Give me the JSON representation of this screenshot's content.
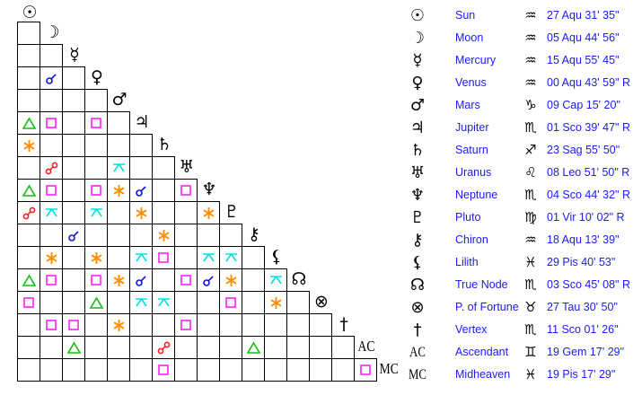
{
  "aspect_colors": {
    "conjunction": "#1010e0",
    "opposition": "#ff2020",
    "trine": "#10c010",
    "square": "#ff20ff",
    "sextile": "#ff8c00",
    "quincunx": "#00e0e0"
  },
  "bodies": [
    {
      "name": "Sun",
      "glyph": "☉",
      "icon": "sun-icon",
      "sign": "♒",
      "position": "27 Aqu 31' 35\""
    },
    {
      "name": "Moon",
      "glyph": "☽",
      "icon": "moon-icon",
      "sign": "♒",
      "position": "05 Aqu 44' 56\""
    },
    {
      "name": "Mercury",
      "glyph": "☿",
      "icon": "mercury-icon",
      "sign": "♒",
      "position": "15 Aqu 55' 45\""
    },
    {
      "name": "Venus",
      "glyph": "♀",
      "icon": "venus-icon",
      "sign": "♒",
      "position": "00 Aqu 43' 59\" R"
    },
    {
      "name": "Mars",
      "glyph": "♂",
      "icon": "mars-icon",
      "sign": "♑",
      "position": "09 Cap 15' 20\""
    },
    {
      "name": "Jupiter",
      "glyph": "♃",
      "icon": "jupiter-icon",
      "sign": "♏",
      "position": "01 Sco 39' 47\" R"
    },
    {
      "name": "Saturn",
      "glyph": "♄",
      "icon": "saturn-icon",
      "sign": "♐",
      "position": "23 Sag 55' 50\""
    },
    {
      "name": "Uranus",
      "glyph": "♅",
      "icon": "uranus-icon",
      "sign": "♌",
      "position": "08 Leo 51' 50\" R"
    },
    {
      "name": "Neptune",
      "glyph": "♆",
      "icon": "neptune-icon",
      "sign": "♏",
      "position": "04 Sco 44' 32\" R"
    },
    {
      "name": "Pluto",
      "glyph": "♇",
      "icon": "pluto-icon",
      "sign": "♍",
      "position": "01 Vir 10' 02\" R"
    },
    {
      "name": "Chiron",
      "glyph": "⚷",
      "icon": "chiron-icon",
      "sign": "♒",
      "position": "18 Aqu 13' 39\""
    },
    {
      "name": "Lilith",
      "glyph": "⚸",
      "icon": "lilith-icon",
      "sign": "♓",
      "position": "29 Pis 40' 53\""
    },
    {
      "name": "True Node",
      "glyph": "☊",
      "icon": "true-node-icon",
      "sign": "♏",
      "position": "03 Sco 45' 08\" R"
    },
    {
      "name": "P. of Fortune",
      "glyph": "⊗",
      "icon": "part-of-fortune-icon",
      "sign": "♉",
      "position": "27 Tau 30' 50\""
    },
    {
      "name": "Vertex",
      "glyph": "†",
      "icon": "vertex-icon",
      "sign": "♏",
      "position": "11 Sco 01' 26\""
    },
    {
      "name": "Ascendant",
      "glyph": "AC",
      "icon": "ascendant-label",
      "sign": "♊",
      "position": "19 Gem 17' 29\""
    },
    {
      "name": "Midheaven",
      "glyph": "MC",
      "icon": "midheaven-label",
      "sign": "♓",
      "position": "19 Pis 17' 29\""
    }
  ],
  "aspects": [
    [],
    [],
    [],
    [
      [
        1,
        "conjunction"
      ]
    ],
    [],
    [
      [
        0,
        "trine"
      ],
      [
        1,
        "square"
      ],
      [
        3,
        "square"
      ]
    ],
    [
      [
        0,
        "sextile"
      ]
    ],
    [
      [
        1,
        "opposition"
      ],
      [
        4,
        "quincunx"
      ]
    ],
    [
      [
        0,
        "trine"
      ],
      [
        1,
        "square"
      ],
      [
        3,
        "square"
      ],
      [
        4,
        "sextile"
      ],
      [
        5,
        "conjunction"
      ],
      [
        7,
        "square"
      ]
    ],
    [
      [
        0,
        "opposition"
      ],
      [
        1,
        "quincunx"
      ],
      [
        3,
        "quincunx"
      ],
      [
        5,
        "sextile"
      ],
      [
        8,
        "sextile"
      ]
    ],
    [
      [
        2,
        "conjunction"
      ],
      [
        6,
        "sextile"
      ]
    ],
    [
      [
        1,
        "sextile"
      ],
      [
        3,
        "sextile"
      ],
      [
        5,
        "quincunx"
      ],
      [
        6,
        "square"
      ],
      [
        8,
        "quincunx"
      ],
      [
        9,
        "quincunx"
      ]
    ],
    [
      [
        0,
        "trine"
      ],
      [
        1,
        "square"
      ],
      [
        3,
        "square"
      ],
      [
        4,
        "sextile"
      ],
      [
        5,
        "conjunction"
      ],
      [
        7,
        "square"
      ],
      [
        8,
        "conjunction"
      ],
      [
        9,
        "sextile"
      ],
      [
        11,
        "quincunx"
      ]
    ],
    [
      [
        0,
        "square"
      ],
      [
        3,
        "trine"
      ],
      [
        5,
        "quincunx"
      ],
      [
        6,
        "quincunx"
      ],
      [
        9,
        "square"
      ],
      [
        11,
        "sextile"
      ]
    ],
    [
      [
        1,
        "square"
      ],
      [
        2,
        "square"
      ],
      [
        4,
        "sextile"
      ],
      [
        7,
        "square"
      ]
    ],
    [
      [
        2,
        "trine"
      ],
      [
        6,
        "opposition"
      ],
      [
        10,
        "trine"
      ]
    ],
    [
      [
        6,
        "square"
      ],
      [
        15,
        "square"
      ]
    ]
  ]
}
